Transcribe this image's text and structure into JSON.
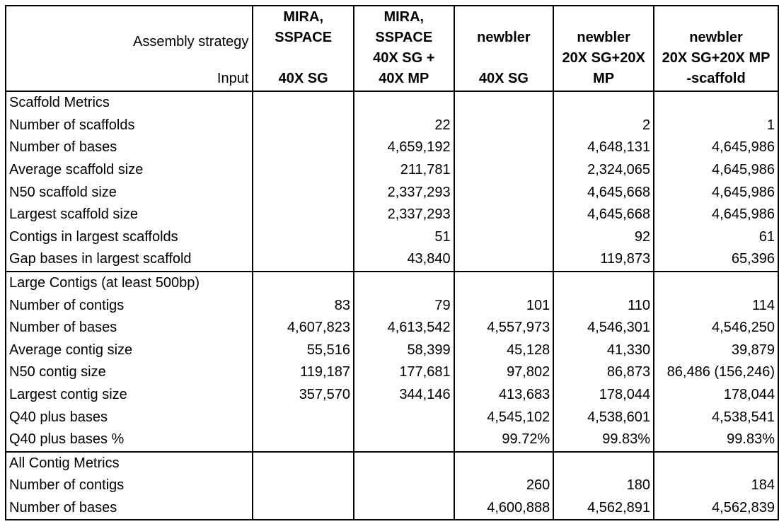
{
  "header": {
    "strategy_label": "Assembly strategy",
    "input_label": "Input",
    "columns": [
      {
        "lines": [
          "MIRA,",
          "SSPACE",
          "",
          "40X SG"
        ]
      },
      {
        "lines": [
          "MIRA,",
          "SSPACE",
          "40X SG +",
          "40X MP"
        ]
      },
      {
        "lines": [
          "newbler",
          "",
          "40X SG"
        ]
      },
      {
        "lines": [
          "newbler",
          "20X SG+20X",
          "MP"
        ]
      },
      {
        "lines": [
          "newbler",
          "20X SG+20X MP",
          "-scaffold"
        ]
      }
    ]
  },
  "sections": [
    {
      "title": "Scaffold Metrics",
      "rows": [
        {
          "label": "Number of scaffolds",
          "values": [
            "",
            "22",
            "",
            "2",
            "1"
          ]
        },
        {
          "label": "Number of bases",
          "values": [
            "",
            "4,659,192",
            "",
            "4,648,131",
            "4,645,986"
          ]
        },
        {
          "label": "Average scaffold size",
          "values": [
            "",
            "211,781",
            "",
            "2,324,065",
            "4,645,986"
          ]
        },
        {
          "label": "N50 scaffold size",
          "values": [
            "",
            "2,337,293",
            "",
            "4,645,668",
            "4,645,986"
          ]
        },
        {
          "label": "Largest scaffold size",
          "values": [
            "",
            "2,337,293",
            "",
            "4,645,668",
            "4,645,986"
          ]
        },
        {
          "label": "Contigs in largest scaffolds",
          "values": [
            "",
            "51",
            "",
            "92",
            "61"
          ]
        },
        {
          "label": "Gap bases in largest scaffold",
          "values": [
            "",
            "43,840",
            "",
            "119,873",
            "65,396"
          ]
        }
      ]
    },
    {
      "title": "Large Contigs (at least 500bp)",
      "rows": [
        {
          "label": "Number of contigs",
          "values": [
            "83",
            "79",
            "101",
            "110",
            "114"
          ]
        },
        {
          "label": "Number of bases",
          "values": [
            "4,607,823",
            "4,613,542",
            "4,557,973",
            "4,546,301",
            "4,546,250"
          ]
        },
        {
          "label": "Average contig size",
          "values": [
            "55,516",
            "58,399",
            "45,128",
            "41,330",
            "39,879"
          ]
        },
        {
          "label": "N50 contig size",
          "values": [
            "119,187",
            "177,681",
            "97,802",
            "86,873",
            "86,486 (156,246)"
          ]
        },
        {
          "label": "Largest contig size",
          "values": [
            "357,570",
            "344,146",
            "413,683",
            "178,044",
            "178,044"
          ]
        },
        {
          "label": "Q40 plus bases",
          "values": [
            "",
            "",
            "4,545,102",
            "4,538,601",
            "4,538,541"
          ]
        },
        {
          "label": "Q40 plus bases %",
          "values": [
            "",
            "",
            "99.72%",
            "99.83%",
            "99.83%"
          ]
        }
      ]
    },
    {
      "title": "All Contig Metrics",
      "rows": [
        {
          "label": "Number of contigs",
          "values": [
            "",
            "",
            "260",
            "180",
            "184"
          ]
        },
        {
          "label": "Number of bases",
          "values": [
            "",
            "",
            "4,600,888",
            "4,562,891",
            "4,562,839"
          ]
        }
      ]
    }
  ]
}
